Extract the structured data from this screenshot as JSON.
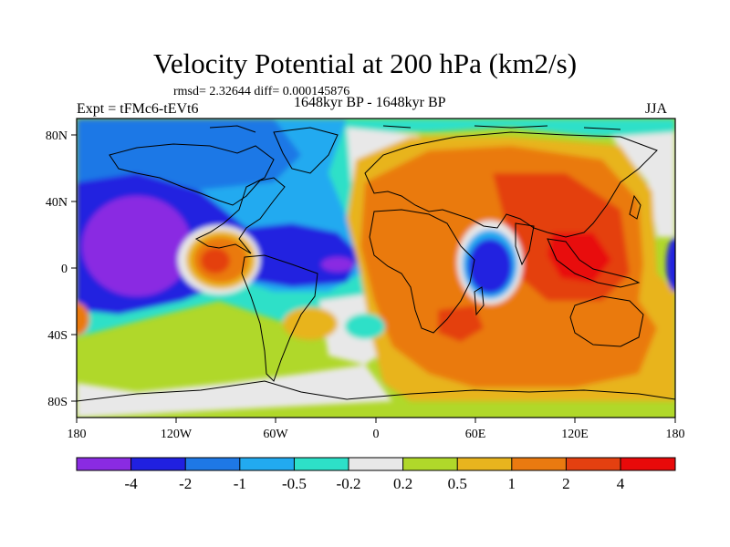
{
  "figure": {
    "title": "Velocity Potential at 200 hPa (km2/s)",
    "stats": "rmsd= 2.32644 diff= 0.000145876",
    "period": "1648kyr BP - 1648kyr BP",
    "experiment": "Expt = tFMc6-tEVt6",
    "season": "JJA"
  },
  "map": {
    "lon_ticks": [
      "180",
      "120W",
      "60W",
      "0",
      "60E",
      "120E",
      "180"
    ],
    "lat_ticks": [
      "80N",
      "40N",
      "0",
      "40S",
      "80S"
    ]
  },
  "colorbar": {
    "labels": [
      "-4",
      "-2",
      "-1",
      "-0.5",
      "-0.2",
      "0.2",
      "0.5",
      "1",
      "2",
      "4"
    ],
    "colors": [
      "#8a2be2",
      "#2020e0",
      "#1e78e6",
      "#22aaf0",
      "#2de0c8",
      "#e8e8e8",
      "#b0d82a",
      "#e8b41e",
      "#ea7a10",
      "#e44010",
      "#e80a0a"
    ]
  },
  "colors": {
    "purple": "#8a2be2",
    "blue": "#2020e0",
    "mid_blue": "#1e78e6",
    "light_blue": "#22aaf0",
    "cyan": "#2de0c8",
    "white": "#e8e8e8",
    "yellow_green": "#b0d82a",
    "gold": "#e8b41e",
    "orange": "#ea7a10",
    "red_orange": "#e44010",
    "red": "#e80a0a"
  }
}
